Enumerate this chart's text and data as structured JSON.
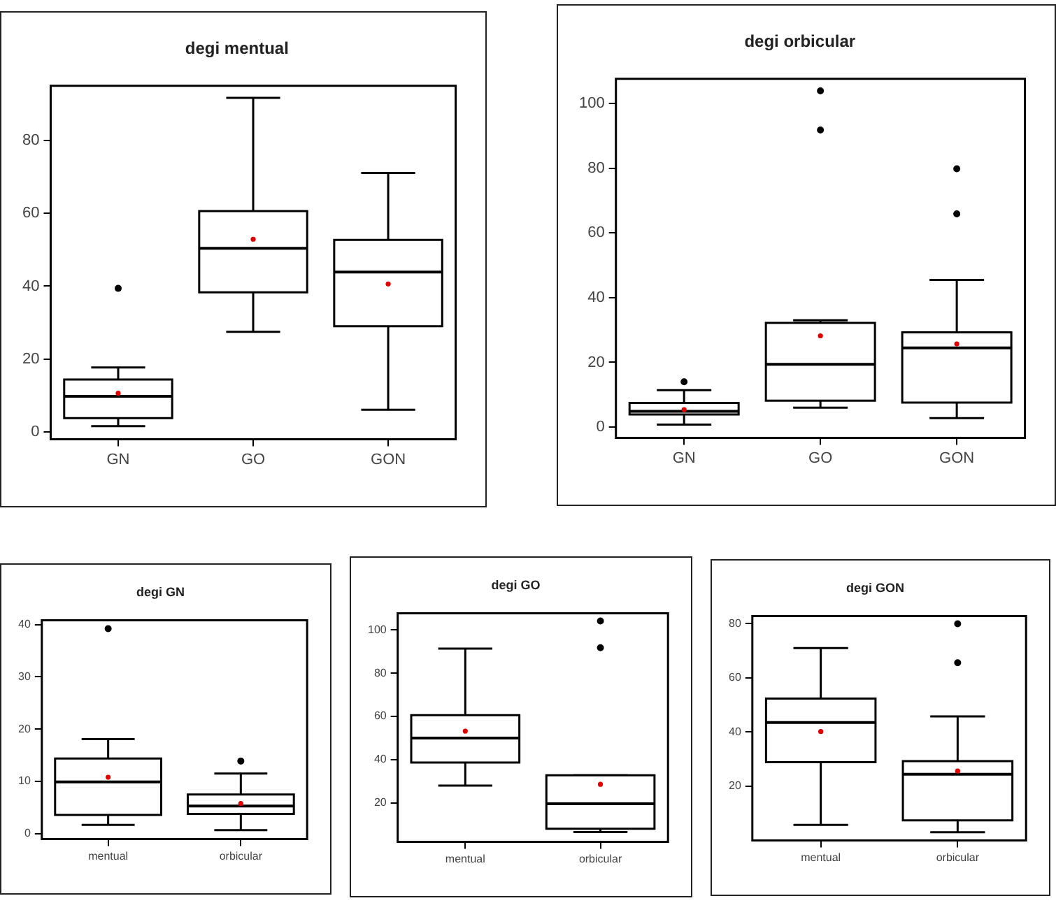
{
  "chart_data": [
    {
      "type": "box",
      "title": "degi mentual",
      "categories": [
        "GN",
        "GO",
        "GON"
      ],
      "ylim": [
        -2,
        95
      ],
      "yticks": [
        0,
        20,
        40,
        60,
        80
      ],
      "grid": false,
      "boxes": [
        {
          "low": 1.6,
          "q1": 3.8,
          "median": 9.8,
          "q3": 14.4,
          "high": 17.7,
          "mean": 10.6,
          "outliers": [
            39.4
          ]
        },
        {
          "low": 27.5,
          "q1": 38.3,
          "median": 50.4,
          "q3": 60.6,
          "high": 91.7,
          "mean": 52.9
        },
        {
          "low": 6.1,
          "q1": 29,
          "median": 43.9,
          "q3": 52.7,
          "high": 71.1,
          "mean": 40.6
        }
      ]
    },
    {
      "type": "box",
      "title": "degi orbicular",
      "categories": [
        "GN",
        "GO",
        "GON"
      ],
      "ylim": [
        -3.3,
        107.6
      ],
      "yticks": [
        0,
        20,
        40,
        60,
        80,
        100
      ],
      "grid": false,
      "boxes": [
        {
          "low": 0.8,
          "q1": 3.9,
          "median": 4.9,
          "q3": 7.5,
          "high": 11.4,
          "mean": 5.4,
          "outliers": [
            14
          ]
        },
        {
          "low": 6,
          "q1": 8.2,
          "median": 19.4,
          "q3": 32.2,
          "high": 33,
          "mean": 28.2,
          "outliers": [
            91.8,
            103.9
          ]
        },
        {
          "low": 2.8,
          "q1": 7.6,
          "median": 24.5,
          "q3": 29.3,
          "high": 45.5,
          "mean": 25.7,
          "outliers": [
            65.9,
            79.8
          ]
        }
      ]
    },
    {
      "type": "box",
      "title": "degi GN",
      "categories": [
        "mentual",
        "orbicular"
      ],
      "ylim": [
        -1,
        40.8
      ],
      "yticks": [
        0,
        10,
        20,
        30,
        40
      ],
      "grid": false,
      "boxes": [
        {
          "low": 1.7,
          "q1": 3.6,
          "median": 9.9,
          "q3": 14.4,
          "high": 18.1,
          "mean": 10.8,
          "outliers": [
            39.2
          ]
        },
        {
          "low": 0.7,
          "q1": 3.8,
          "median": 5.3,
          "q3": 7.5,
          "high": 11.5,
          "mean": 5.8,
          "outliers": [
            13.9
          ]
        }
      ]
    },
    {
      "type": "box",
      "title": "degi GO",
      "categories": [
        "mentual",
        "orbicular"
      ],
      "ylim": [
        2,
        107.7
      ],
      "yticks": [
        20,
        40,
        60,
        80,
        100
      ],
      "grid": false,
      "boxes": [
        {
          "low": 28,
          "q1": 38.7,
          "median": 50,
          "q3": 60.6,
          "high": 91.4,
          "mean": 53.2
        },
        {
          "low": 6.5,
          "q1": 8,
          "median": 19.6,
          "q3": 32.8,
          "high": 32.8,
          "mean": 28.6,
          "outliers": [
            91.8,
            104.2
          ]
        }
      ]
    },
    {
      "type": "box",
      "title": "degi GON",
      "categories": [
        "mentual",
        "orbicular"
      ],
      "ylim": [
        0,
        82.8
      ],
      "yticks": [
        20,
        40,
        60,
        80
      ],
      "grid": false,
      "boxes": [
        {
          "low": 5.7,
          "q1": 28.9,
          "median": 43.5,
          "q3": 52.4,
          "high": 71,
          "mean": 40.2
        },
        {
          "low": 3,
          "q1": 7.4,
          "median": 24.4,
          "q3": 29.3,
          "high": 45.8,
          "mean": 25.6,
          "outliers": [
            65.6,
            80
          ]
        }
      ]
    }
  ]
}
